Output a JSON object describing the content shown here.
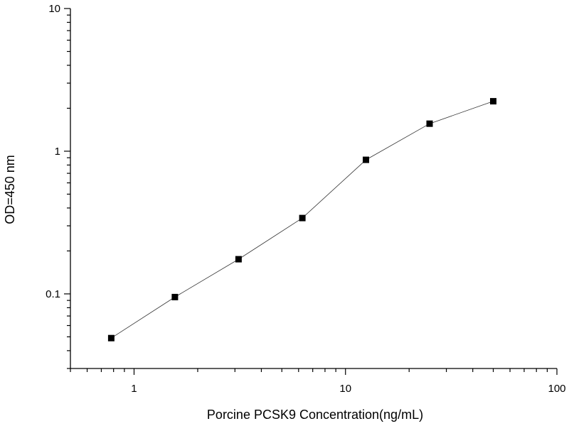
{
  "chart_data": {
    "type": "scatter",
    "title": "",
    "xlabel": "Porcine PCSK9 Concentration(ng/mL)",
    "ylabel": "OD=450 nm",
    "x_scale": "log",
    "y_scale": "log",
    "xlim": [
      0.5,
      100
    ],
    "ylim": [
      0.03,
      10
    ],
    "x_ticks": [
      1,
      10,
      100
    ],
    "x_tick_labels": [
      "1",
      "10",
      "100"
    ],
    "y_ticks": [
      0.1,
      1,
      10
    ],
    "y_tick_labels": [
      "0.1",
      "1",
      "10"
    ],
    "grid": false,
    "legend": "none",
    "series": [
      {
        "x": [
          0.78,
          1.56,
          3.12,
          6.25,
          12.5,
          25,
          50
        ],
        "y": [
          0.049,
          0.095,
          0.175,
          0.34,
          0.87,
          1.56,
          2.24
        ],
        "marker": "square",
        "line": true,
        "color": "#000000"
      }
    ]
  }
}
